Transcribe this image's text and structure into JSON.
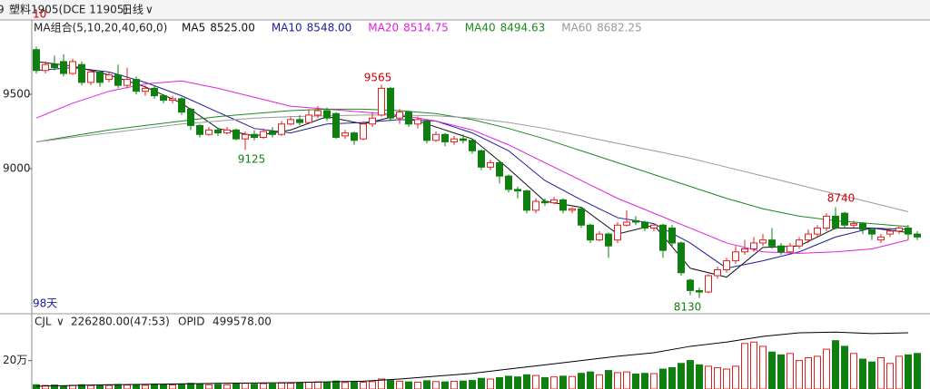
{
  "header": {
    "cut_label": "9",
    "dropdown": "∨"
  },
  "chart_data": [
    {
      "type": "candlestick",
      "title": "塑料1905(DCE 11905)",
      "period": "日线",
      "ma_title": "MA组合(5,10,20,40,60,0)",
      "corner_label": "10",
      "days_label": "98天",
      "ylim": [
        8030,
        10000
      ],
      "yticks": [
        9000,
        9500
      ],
      "up_color": "#e02020",
      "down_color": "#0f7f0f",
      "open": [
        9800,
        9660,
        9700,
        9720,
        9640,
        9700,
        9580,
        9650,
        9600,
        9630,
        9560,
        9600,
        9520,
        9540,
        9490,
        9460,
        9470,
        9400,
        9290,
        9230,
        9260,
        9240,
        9260,
        9200,
        9230,
        9210,
        9250,
        9230,
        9300,
        9330,
        9310,
        9360,
        9390,
        9370,
        9220,
        9240,
        9200,
        9300,
        9360,
        9540,
        9340,
        9380,
        9300,
        9320,
        9190,
        9230,
        9180,
        9200,
        9190,
        9120,
        9010,
        9040,
        8950,
        8860,
        8850,
        8720,
        8780,
        8770,
        8790,
        8720,
        8730,
        8620,
        8520,
        8560,
        8520,
        8620,
        8650,
        8640,
        8600,
        8620,
        8600,
        8500,
        8250,
        8180,
        8170,
        8280,
        8320,
        8380,
        8440,
        8460,
        8500,
        8520,
        8480,
        8440,
        8480,
        8520,
        8560,
        8600,
        8680,
        8700,
        8620,
        8630,
        8590,
        8520,
        8560,
        8580,
        8600,
        8560
      ],
      "high": [
        9820,
        9720,
        9760,
        9770,
        9740,
        9720,
        9670,
        9660,
        9650,
        9700,
        9680,
        9620,
        9560,
        9560,
        9500,
        9490,
        9480,
        9410,
        9300,
        9280,
        9270,
        9280,
        9270,
        9250,
        9260,
        9270,
        9280,
        9320,
        9350,
        9360,
        9400,
        9420,
        9410,
        9380,
        9260,
        9250,
        9320,
        9380,
        9565,
        9550,
        9400,
        9390,
        9350,
        9330,
        9250,
        9240,
        9220,
        9230,
        9200,
        9130,
        9060,
        9050,
        8960,
        8880,
        8860,
        8800,
        8800,
        8810,
        8800,
        8740,
        8740,
        8630,
        8580,
        8570,
        8640,
        8720,
        8680,
        8650,
        8630,
        8630,
        8620,
        8510,
        8260,
        8200,
        8290,
        8340,
        8400,
        8480,
        8520,
        8540,
        8560,
        8600,
        8500,
        8500,
        8540,
        8590,
        8620,
        8700,
        8740,
        8710,
        8650,
        8640,
        8600,
        8560,
        8600,
        8610,
        8620,
        8580
      ],
      "low": [
        9640,
        9640,
        9660,
        9620,
        9630,
        9560,
        9560,
        9550,
        9580,
        9540,
        9540,
        9500,
        9490,
        9470,
        9440,
        9440,
        9360,
        9260,
        9210,
        9220,
        9220,
        9230,
        9190,
        9125,
        9190,
        9200,
        9210,
        9220,
        9290,
        9290,
        9300,
        9340,
        9320,
        9200,
        9200,
        9160,
        9190,
        9280,
        9350,
        9320,
        9300,
        9280,
        9270,
        9170,
        9180,
        9150,
        9160,
        9170,
        9100,
        8990,
        8990,
        8900,
        8840,
        8800,
        8700,
        8700,
        8750,
        8760,
        8700,
        8700,
        8600,
        8500,
        8510,
        8400,
        8500,
        8610,
        8620,
        8580,
        8580,
        8400,
        8480,
        8280,
        8150,
        8130,
        8160,
        8260,
        8300,
        8360,
        8420,
        8440,
        8480,
        8460,
        8420,
        8420,
        8460,
        8500,
        8540,
        8580,
        8590,
        8600,
        8600,
        8560,
        8520,
        8500,
        8540,
        8560,
        8520,
        8520
      ],
      "close": [
        9660,
        9700,
        9680,
        9640,
        9720,
        9580,
        9650,
        9580,
        9630,
        9560,
        9600,
        9520,
        9540,
        9490,
        9460,
        9470,
        9380,
        9290,
        9230,
        9260,
        9240,
        9260,
        9200,
        9230,
        9210,
        9250,
        9230,
        9300,
        9330,
        9310,
        9360,
        9390,
        9340,
        9210,
        9240,
        9190,
        9300,
        9340,
        9540,
        9340,
        9380,
        9300,
        9330,
        9190,
        9230,
        9180,
        9200,
        9190,
        9120,
        9010,
        9040,
        8950,
        8860,
        8850,
        8720,
        8780,
        8770,
        8790,
        8720,
        8730,
        8620,
        8520,
        8560,
        8480,
        8620,
        8640,
        8640,
        8600,
        8620,
        8450,
        8500,
        8300,
        8180,
        8170,
        8280,
        8320,
        8380,
        8440,
        8460,
        8500,
        8520,
        8480,
        8440,
        8480,
        8520,
        8560,
        8600,
        8680,
        8600,
        8620,
        8630,
        8590,
        8560,
        8540,
        8580,
        8600,
        8560,
        8540
      ],
      "series": [
        {
          "name": "MA5",
          "current": "8525.00",
          "color": "#111111",
          "x": [
            0,
            4,
            8,
            12,
            16,
            20,
            24,
            28,
            32,
            36,
            40,
            44,
            48,
            52,
            56,
            60,
            64,
            68,
            72,
            76,
            80,
            84,
            88,
            92,
            96
          ],
          "values": [
            9720,
            9690,
            9630,
            9550,
            9440,
            9270,
            9220,
            9260,
            9350,
            9300,
            9360,
            9280,
            9200,
            9000,
            8780,
            8740,
            8560,
            8620,
            8330,
            8270,
            8470,
            8480,
            8600,
            8600,
            8570
          ]
        },
        {
          "name": "MA10",
          "current": "8548.00",
          "color": "#1c1c9c",
          "x": [
            0,
            4,
            8,
            12,
            16,
            20,
            24,
            28,
            32,
            36,
            40,
            44,
            48,
            52,
            56,
            60,
            64,
            68,
            72,
            76,
            80,
            84,
            88,
            92,
            96
          ],
          "values": [
            9660,
            9680,
            9650,
            9580,
            9490,
            9380,
            9270,
            9240,
            9300,
            9310,
            9330,
            9320,
            9240,
            9120,
            8920,
            8790,
            8670,
            8630,
            8500,
            8330,
            8380,
            8440,
            8540,
            8600,
            8590
          ]
        },
        {
          "name": "MA20",
          "current": "8514.75",
          "color": "#e020e0",
          "x": [
            0,
            4,
            8,
            12,
            16,
            20,
            24,
            28,
            32,
            36,
            40,
            44,
            48,
            52,
            56,
            60,
            64,
            68,
            72,
            76,
            80,
            84,
            88,
            92,
            96
          ],
          "values": [
            9340,
            9440,
            9520,
            9570,
            9590,
            9540,
            9480,
            9420,
            9400,
            9380,
            9360,
            9320,
            9260,
            9160,
            9040,
            8920,
            8800,
            8700,
            8600,
            8500,
            8440,
            8430,
            8440,
            8460,
            8520
          ]
        },
        {
          "name": "MA40",
          "current": "8494.63",
          "color": "#1a8a1a",
          "x": [
            0,
            4,
            8,
            12,
            16,
            20,
            24,
            28,
            32,
            36,
            40,
            44,
            48,
            52,
            56,
            60,
            64,
            68,
            72,
            76,
            80,
            84,
            88,
            92,
            96
          ],
          "values": [
            9180,
            9220,
            9260,
            9290,
            9320,
            9350,
            9370,
            9390,
            9400,
            9400,
            9390,
            9370,
            9330,
            9270,
            9200,
            9120,
            9040,
            8960,
            8880,
            8800,
            8730,
            8680,
            8650,
            8630,
            8610
          ]
        },
        {
          "name": "MA60",
          "current": "8682.25",
          "color": "#999999",
          "x": [
            0,
            4,
            8,
            12,
            16,
            20,
            24,
            28,
            32,
            36,
            40,
            44,
            48,
            52,
            56,
            60,
            64,
            68,
            72,
            76,
            80,
            84,
            88,
            92,
            96
          ],
          "values": [
            9180,
            9210,
            9240,
            9270,
            9300,
            9320,
            9340,
            9350,
            9355,
            9360,
            9360,
            9355,
            9340,
            9310,
            9270,
            9220,
            9170,
            9120,
            9070,
            9010,
            8950,
            8890,
            8830,
            8770,
            8710
          ]
        }
      ],
      "annotations": [
        "9565",
        "9125",
        "8740",
        "8130"
      ]
    },
    {
      "type": "bar",
      "title": "CJL",
      "readout": "226280.00(47:53)",
      "ylim": [
        0,
        510000
      ],
      "yticks": [
        {
          "value": 200000,
          "label": "20万"
        }
      ],
      "values": [
        30000,
        25000,
        28000,
        22000,
        26000,
        30000,
        24000,
        27000,
        25000,
        32000,
        28000,
        30000,
        26000,
        34000,
        30000,
        28000,
        36000,
        40000,
        35000,
        30000,
        32000,
        30000,
        36000,
        40000,
        34000,
        38000,
        36000,
        42000,
        40000,
        45000,
        48000,
        50000,
        44000,
        56000,
        46000,
        50000,
        48000,
        52000,
        70000,
        60000,
        55000,
        50000,
        48000,
        58000,
        52000,
        50000,
        54000,
        56000,
        60000,
        75000,
        70000,
        80000,
        90000,
        85000,
        100000,
        95000,
        80000,
        85000,
        90000,
        88000,
        110000,
        120000,
        100000,
        130000,
        115000,
        120000,
        105000,
        110000,
        108000,
        140000,
        150000,
        180000,
        200000,
        170000,
        160000,
        150000,
        140000,
        160000,
        320000,
        330000,
        300000,
        260000,
        240000,
        250000,
        200000,
        220000,
        230000,
        280000,
        340000,
        300000,
        250000,
        210000,
        190000,
        220000,
        180000,
        230000,
        240000,
        250000
      ],
      "series": [
        {
          "name": "OPID",
          "current": "499578.00",
          "color": "#000000",
          "x": [
            0,
            4,
            8,
            12,
            16,
            20,
            24,
            28,
            32,
            36,
            40,
            44,
            48,
            52,
            56,
            60,
            64,
            68,
            72,
            76,
            80,
            84,
            88,
            92,
            96
          ],
          "values": [
            20000,
            25000,
            30000,
            33000,
            36000,
            40000,
            42000,
            45000,
            50000,
            55000,
            70000,
            90000,
            110000,
            140000,
            170000,
            200000,
            230000,
            255000,
            300000,
            330000,
            370000,
            395000,
            400000,
            390000,
            395000
          ]
        }
      ]
    }
  ]
}
